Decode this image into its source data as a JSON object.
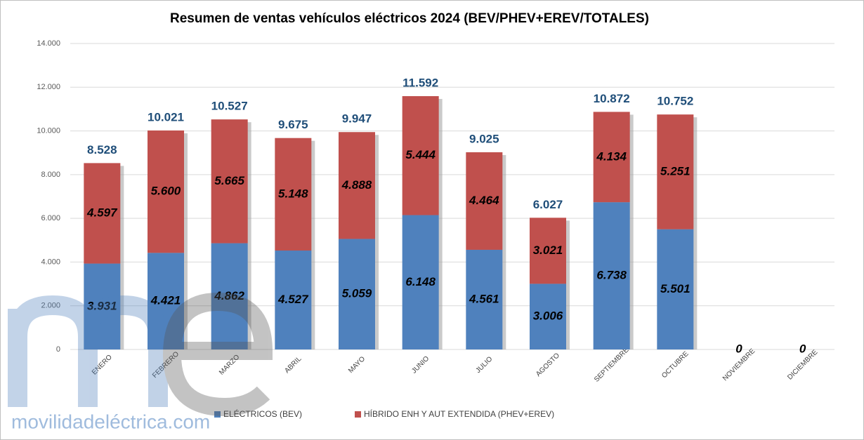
{
  "chart_data": {
    "type": "stacked_bar",
    "title": "Resumen de ventas vehículos eléctricos 2024 (BEV/PHEV+EREV/TOTALES)",
    "categories": [
      "ENERO",
      "FEBRERO",
      "MARZO",
      "ABRIL",
      "MAYO",
      "JUNIO",
      "JULIO",
      "AGOSTO",
      "SEPTIEMBRE",
      "OCTUBRE",
      "NOVIEMBRE",
      "DICIEMBRE"
    ],
    "series": [
      {
        "name": "ELÉCTRICOS (BEV)",
        "color": "#4f81bd",
        "values": [
          3931,
          4421,
          4862,
          4527,
          5059,
          6148,
          4561,
          3006,
          6738,
          5501,
          0,
          0
        ],
        "value_labels": [
          "3.931",
          "4.421",
          "4.862",
          "4.527",
          "5.059",
          "6.148",
          "4.561",
          "3.006",
          "6.738",
          "5.501",
          "0",
          "0"
        ]
      },
      {
        "name": "HÍBRIDO ENH Y AUT EXTENDIDA (PHEV+EREV)",
        "color": "#c0504d",
        "values": [
          4597,
          5600,
          5665,
          5148,
          4888,
          5444,
          4464,
          3021,
          4134,
          5251,
          0,
          0
        ],
        "value_labels": [
          "4.597",
          "5.600",
          "5.665",
          "5.148",
          "4.888",
          "5.444",
          "4.464",
          "3.021",
          "4.134",
          "5.251",
          null,
          null
        ]
      }
    ],
    "totals": {
      "values": [
        8528,
        10021,
        10527,
        9675,
        9947,
        11592,
        9025,
        6027,
        10872,
        10752,
        null,
        null
      ],
      "value_labels": [
        "8.528",
        "10.021",
        "10.527",
        "9.675",
        "9.947",
        "11.592",
        "9.025",
        "6.027",
        "10.872",
        "10.752",
        null,
        null
      ]
    },
    "ylim": [
      0,
      14000
    ],
    "yticks": [
      0,
      {
        "value": 2000,
        "label": "2.000"
      },
      {
        "value": 4000,
        "label": "4.000"
      },
      {
        "value": 6000,
        "label": "6.000"
      },
      {
        "value": 8000,
        "label": "8.000"
      },
      {
        "value": 10000,
        "label": "10.000"
      },
      {
        "value": 12000,
        "label": "12.000"
      },
      {
        "value": 14000,
        "label": "14.000"
      }
    ],
    "grid": true,
    "legend": "bottom",
    "watermark": "movilidadeléctrica.com"
  }
}
